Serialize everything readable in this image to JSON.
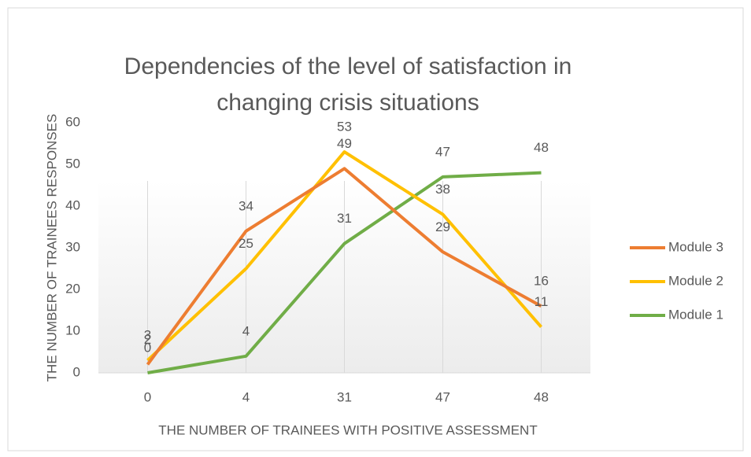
{
  "chart_data": {
    "type": "line",
    "title": "Dependencies of the level of satisfaction in changing crisis situations",
    "x_label": "THE NUMBER OF TRAINEES WITH POSITIVE ASSESSMENT",
    "y_label": "THE NUMBER OF TRAINEES RESPONSES",
    "categories": [
      "0",
      "4",
      "31",
      "47",
      "48"
    ],
    "series": [
      {
        "name": "Module 3",
        "color": "#ed7d31",
        "values": [
          2,
          34,
          49,
          29,
          16
        ]
      },
      {
        "name": "Module 2",
        "color": "#ffc000",
        "values": [
          3,
          25,
          53,
          38,
          11
        ]
      },
      {
        "name": "Module 1",
        "color": "#70ad47",
        "values": [
          0,
          4,
          31,
          47,
          48
        ]
      }
    ],
    "ylim": [
      0,
      60
    ],
    "yticks": [
      0,
      10,
      20,
      30,
      40,
      50,
      60
    ],
    "legend": "right",
    "data_labels": true
  }
}
